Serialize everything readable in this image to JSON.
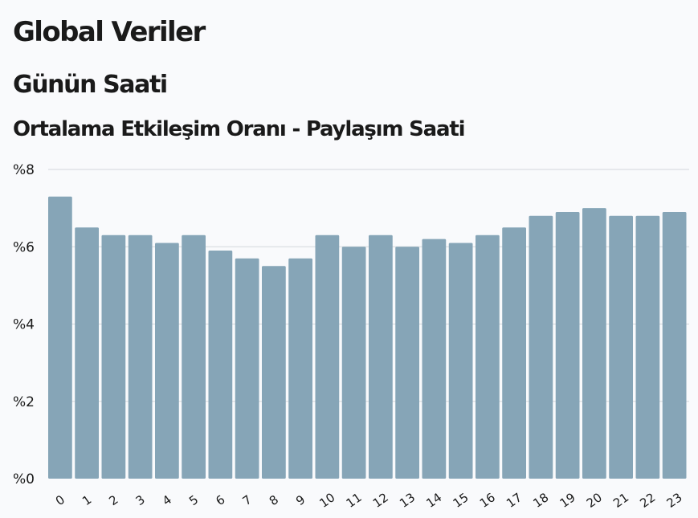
{
  "header": {
    "title": "Global Veriler",
    "subtitle": "Günün Saati",
    "chart_title": "Ortalama Etkileşim Oranı - Paylaşım Saati"
  },
  "chart_data": {
    "type": "bar",
    "title": "Ortalama Etkileşim Oranı - Paylaşım Saati",
    "categories": [
      "0",
      "1",
      "2",
      "3",
      "4",
      "5",
      "6",
      "7",
      "8",
      "9",
      "10",
      "11",
      "12",
      "13",
      "14",
      "15",
      "16",
      "17",
      "18",
      "19",
      "20",
      "21",
      "22",
      "23"
    ],
    "values": [
      7.3,
      6.5,
      6.3,
      6.3,
      6.1,
      6.3,
      5.9,
      5.7,
      5.5,
      5.7,
      6.3,
      6.0,
      6.3,
      6.0,
      6.2,
      6.1,
      6.3,
      6.5,
      6.8,
      6.9,
      7.0,
      6.8,
      6.8,
      6.9
    ],
    "ylim": [
      0,
      8
    ],
    "yticks": [
      0,
      2,
      4,
      6,
      8
    ],
    "ytick_labels": [
      "%0",
      "%2",
      "%4",
      "%6",
      "%8"
    ],
    "grid": true,
    "bar_color": "#86a5b7",
    "grid_color": "#d3d7dc"
  }
}
